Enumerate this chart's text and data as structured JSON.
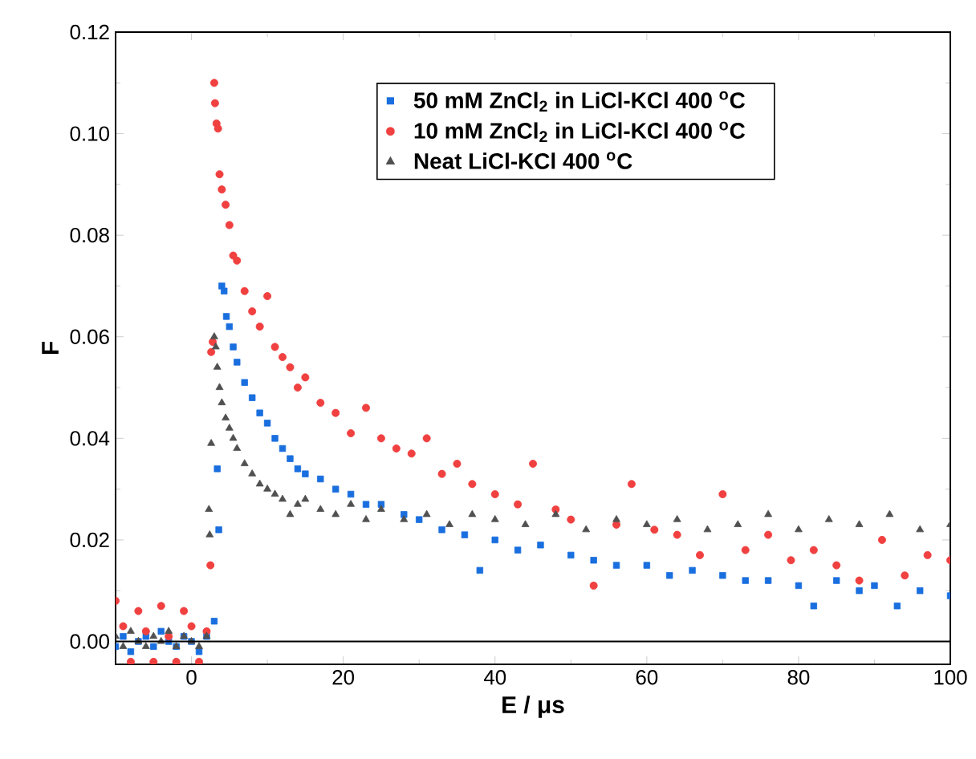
{
  "chart_data": {
    "type": "scatter",
    "xlabel": "E / μs",
    "ylabel": "F",
    "xlim": [
      -10,
      100
    ],
    "ylim": [
      -0.0045,
      0.12
    ],
    "xticks": [
      0,
      20,
      40,
      60,
      80,
      100
    ],
    "yticks": [
      {
        "value": 0,
        "label": "0.00"
      },
      {
        "value": 0.02,
        "label": "0.02"
      },
      {
        "value": 0.04,
        "label": "0.04"
      },
      {
        "value": 0.06,
        "label": "0.06"
      },
      {
        "value": 0.08,
        "label": "0.08"
      },
      {
        "value": 0.1,
        "label": "0.10"
      },
      {
        "value": 0.12,
        "label": "0.12"
      }
    ],
    "legend": "top right",
    "ref_lines": [
      {
        "axis": "y",
        "value": 0,
        "color": "#000000"
      }
    ],
    "series": [
      {
        "name": "50 mM ZnCl$_{2}$ in LiCl-KCl 400 $^{o}$C",
        "color": "#1a6fdf",
        "marker": "square",
        "x": [
          -10,
          -9,
          -8,
          -7,
          -6,
          -5,
          -4,
          -3,
          -2,
          -1,
          0,
          1,
          2,
          3,
          3.4,
          3.6,
          4,
          4.3,
          4.6,
          5,
          5.5,
          6,
          7,
          8,
          9,
          10,
          11,
          12,
          13,
          14,
          15,
          17,
          19,
          21,
          23,
          25,
          28,
          30,
          33,
          36,
          38,
          40,
          43,
          46,
          50,
          53,
          56,
          60,
          63,
          66,
          70,
          73,
          76,
          80,
          82,
          85,
          88,
          90,
          93,
          96,
          100
        ],
        "values": [
          -0.001,
          0.001,
          -0.002,
          0.0,
          0.001,
          -0.001,
          0.002,
          0.0,
          -0.001,
          0.001,
          0.0,
          -0.002,
          0.001,
          0.004,
          0.034,
          0.022,
          0.07,
          0.069,
          0.064,
          0.062,
          0.058,
          0.055,
          0.051,
          0.048,
          0.045,
          0.043,
          0.04,
          0.038,
          0.036,
          0.034,
          0.033,
          0.032,
          0.03,
          0.029,
          0.027,
          0.027,
          0.025,
          0.024,
          0.022,
          0.021,
          0.014,
          0.02,
          0.018,
          0.019,
          0.017,
          0.016,
          0.015,
          0.015,
          0.013,
          0.014,
          0.013,
          0.012,
          0.012,
          0.011,
          0.007,
          0.012,
          0.01,
          0.011,
          0.007,
          0.01,
          0.009
        ]
      },
      {
        "name": "10 mM ZnCl$_{2}$ in LiCl-KCl 400 $^{o}$C",
        "color": "#f04040",
        "marker": "circle",
        "x": [
          -10,
          -9,
          -8,
          -7,
          -6,
          -5,
          -4,
          -3,
          -2,
          -1,
          0,
          1,
          2,
          2.5,
          2.6,
          2.8,
          3,
          3.1,
          3.3,
          3.5,
          3.7,
          4,
          4.5,
          5,
          5.5,
          6,
          7,
          8,
          9,
          10,
          11,
          12,
          13,
          14,
          15,
          17,
          19,
          21,
          23,
          25,
          27,
          29,
          31,
          33,
          35,
          37,
          40,
          43,
          45,
          48,
          50,
          53,
          56,
          58,
          61,
          64,
          67,
          70,
          73,
          76,
          79,
          82,
          85,
          88,
          91,
          94,
          97,
          100
        ],
        "values": [
          0.008,
          0.003,
          -0.004,
          0.006,
          0.002,
          -0.004,
          0.007,
          0.001,
          -0.004,
          0.006,
          0.003,
          -0.004,
          0.002,
          0.015,
          0.057,
          0.059,
          0.11,
          0.106,
          0.102,
          0.101,
          0.092,
          0.089,
          0.086,
          0.082,
          0.076,
          0.075,
          0.069,
          0.065,
          0.062,
          0.068,
          0.058,
          0.056,
          0.054,
          0.05,
          0.052,
          0.047,
          0.045,
          0.041,
          0.046,
          0.04,
          0.038,
          0.037,
          0.04,
          0.033,
          0.035,
          0.031,
          0.029,
          0.027,
          0.035,
          0.026,
          0.024,
          0.011,
          0.023,
          0.031,
          0.022,
          0.021,
          0.017,
          0.029,
          0.018,
          0.021,
          0.016,
          0.018,
          0.015,
          0.012,
          0.02,
          0.013,
          0.017,
          0.016
        ]
      },
      {
        "name": "Neat LiCl-KCl 400 $^{o}$C",
        "color": "#505050",
        "marker": "triangle",
        "x": [
          -10,
          -9,
          -8,
          -7,
          -6,
          -5,
          -4,
          -3,
          -2,
          -1,
          0,
          1,
          2,
          2.3,
          2.4,
          2.6,
          3,
          3.2,
          3.4,
          3.7,
          4,
          4.5,
          5,
          5.5,
          6,
          7,
          8,
          9,
          10,
          11,
          12,
          13,
          14,
          15,
          17,
          19,
          21,
          23,
          25,
          28,
          31,
          34,
          37,
          40,
          44,
          48,
          52,
          56,
          60,
          64,
          68,
          72,
          76,
          80,
          84,
          88,
          92,
          96,
          100
        ],
        "values": [
          0.001,
          -0.001,
          0.002,
          0.0,
          -0.001,
          0.001,
          0.0,
          0.002,
          -0.001,
          0.001,
          0.0,
          -0.001,
          0.001,
          0.026,
          0.021,
          0.039,
          0.06,
          0.058,
          0.054,
          0.05,
          0.047,
          0.044,
          0.042,
          0.04,
          0.038,
          0.035,
          0.033,
          0.031,
          0.03,
          0.029,
          0.028,
          0.025,
          0.027,
          0.028,
          0.026,
          0.025,
          0.027,
          0.024,
          0.026,
          0.024,
          0.025,
          0.023,
          0.025,
          0.024,
          0.023,
          0.025,
          0.022,
          0.024,
          0.023,
          0.024,
          0.022,
          0.023,
          0.025,
          0.022,
          0.024,
          0.023,
          0.025,
          0.022,
          0.023
        ]
      }
    ]
  }
}
